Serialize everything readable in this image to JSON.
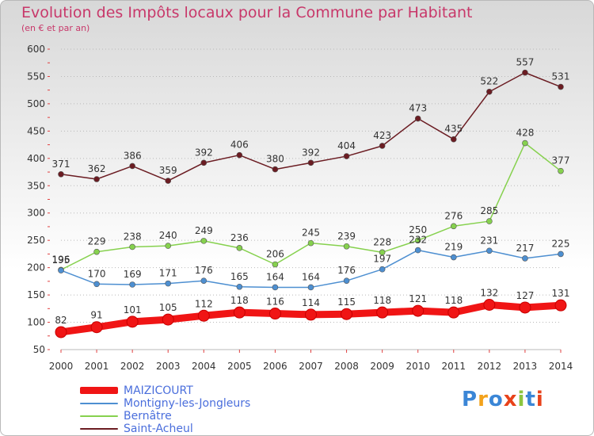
{
  "header": {
    "title": "Evolution des Impôts locaux pour la Commune par Habitant",
    "subtitle": "(en € et par an)"
  },
  "colors": {
    "title": "#c8386a",
    "legend_text": "#4a6edc",
    "grid": "#b9b9b9",
    "axis_text": "#333333"
  },
  "chart_data": {
    "type": "line",
    "title": "Evolution des Impôts locaux pour la Commune par Habitant",
    "subtitle": "(en € et par an)",
    "xlabel": "",
    "ylabel": "",
    "categories": [
      "2000",
      "2001",
      "2002",
      "2003",
      "2004",
      "2005",
      "2006",
      "2007",
      "2008",
      "2009",
      "2010",
      "2011",
      "2012",
      "2013",
      "2014"
    ],
    "ylim": [
      50,
      600
    ],
    "yticks": [
      50,
      100,
      150,
      200,
      250,
      300,
      350,
      400,
      450,
      500,
      550,
      600
    ],
    "grid": "horizontal dotted",
    "legend_position": "bottom-left",
    "series": [
      {
        "name": "Saint-Acheul",
        "color": "#6b1c22",
        "values": [
          371,
          362,
          386,
          359,
          392,
          406,
          380,
          392,
          404,
          423,
          473,
          435,
          522,
          557,
          531
        ]
      },
      {
        "name": "Bernâtre",
        "color": "#86d14e",
        "values": [
          196,
          229,
          238,
          240,
          249,
          236,
          206,
          245,
          239,
          228,
          250,
          276,
          285,
          428,
          377
        ]
      },
      {
        "name": "Montigny-les-Jongleurs",
        "color": "#4d8fd1",
        "values": [
          195,
          170,
          169,
          171,
          176,
          165,
          164,
          164,
          176,
          197,
          232,
          219,
          231,
          217,
          225
        ]
      },
      {
        "name": "MAIZICOURT",
        "color": "#f01515",
        "values": [
          82,
          91,
          101,
          105,
          112,
          118,
          116,
          114,
          115,
          118,
          121,
          118,
          132,
          127,
          131
        ]
      }
    ]
  },
  "legend": [
    {
      "name": "MAIZICOURT",
      "color": "#f01515"
    },
    {
      "name": "Montigny-les-Jongleurs",
      "color": "#4d8fd1"
    },
    {
      "name": "Bernâtre",
      "color": "#86d14e"
    },
    {
      "name": "Saint-Acheul",
      "color": "#6b1c22"
    }
  ],
  "logo": {
    "text": "Proxiti",
    "colors": [
      "#3b86d6",
      "#f3a21b",
      "#3b86d6",
      "#e8421a",
      "#8cc63f",
      "#3b86d6",
      "#e8421a"
    ]
  }
}
